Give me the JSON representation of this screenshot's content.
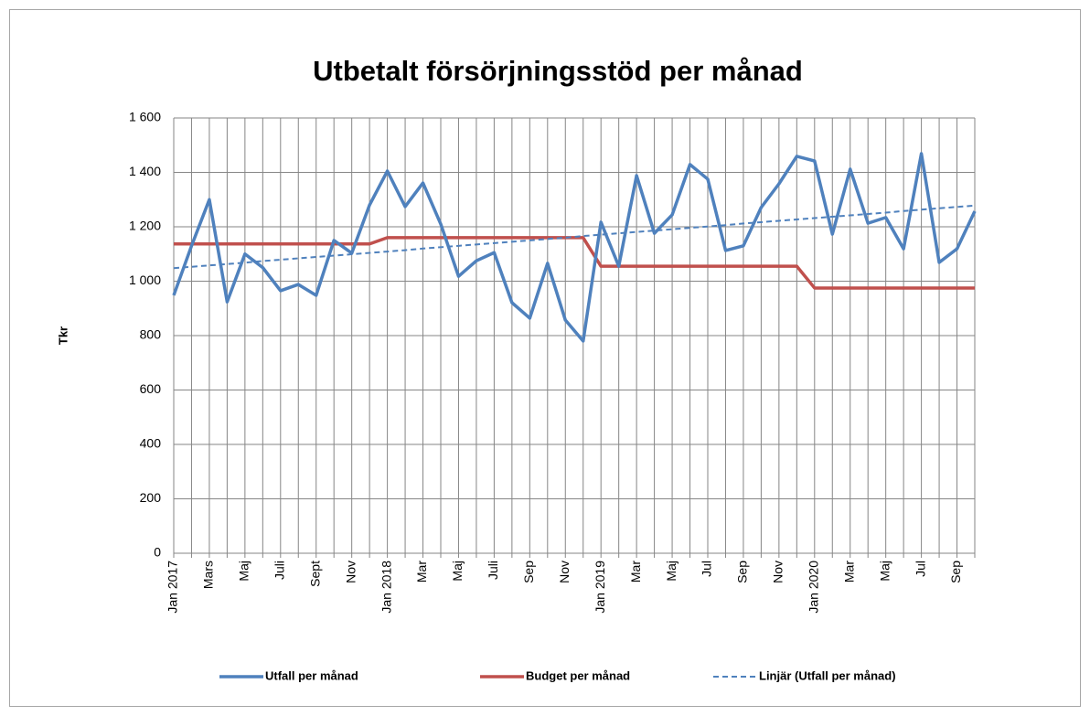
{
  "chart_data": {
    "type": "line",
    "title": "Utbetalt försörjningsstöd per månad",
    "y_label": "Tkr",
    "categories": [
      "Jan 2017",
      null,
      "Mars",
      null,
      "Maj",
      null,
      "Juli",
      null,
      "Sept",
      null,
      "Nov",
      null,
      "Jan 2018",
      null,
      "Mar",
      null,
      "Maj",
      null,
      "Juli",
      null,
      "Sep",
      null,
      "Nov",
      null,
      "Jan 2019",
      null,
      "Mar",
      null,
      "Maj",
      null,
      "Jul",
      null,
      "Sep",
      null,
      "Nov",
      null,
      "Jan 2020",
      null,
      "Mar",
      null,
      "Maj",
      null,
      "Jul",
      null,
      "Sep",
      null
    ],
    "series": [
      {
        "name": "Utfall per månad",
        "color": "#4f81bd",
        "line_style": "solid",
        "values": [
          948,
          1130,
          1300,
          924,
          1100,
          1050,
          965,
          988,
          948,
          1150,
          1103,
          1280,
          1405,
          1274,
          1361,
          1210,
          1018,
          1075,
          1105,
          921,
          864,
          1066,
          857,
          780,
          1217,
          1055,
          1388,
          1176,
          1244,
          1429,
          1375,
          1113,
          1130,
          1271,
          1358,
          1459,
          1442,
          1173,
          1412,
          1213,
          1234,
          1119,
          1469,
          1069,
          1119,
          1257
        ]
      },
      {
        "name": "Budget per månad",
        "color": "#c0504d",
        "line_style": "solid",
        "values": [
          1137,
          1137,
          1137,
          1137,
          1137,
          1137,
          1137,
          1137,
          1137,
          1137,
          1137,
          1137,
          1160,
          1160,
          1160,
          1160,
          1160,
          1160,
          1160,
          1160,
          1160,
          1160,
          1160,
          1160,
          1055,
          1055,
          1055,
          1055,
          1055,
          1055,
          1055,
          1055,
          1055,
          1055,
          1055,
          1055,
          975,
          975,
          975,
          975,
          975,
          975,
          975,
          975,
          975,
          975
        ]
      },
      {
        "name": "Linjär (Utfall per månad)",
        "color": "#4f81bd",
        "line_style": "dashed",
        "values": [
          1048,
          1053,
          1058,
          1063,
          1068,
          1074,
          1079,
          1084,
          1089,
          1094,
          1099,
          1104,
          1109,
          1114,
          1120,
          1125,
          1130,
          1135,
          1140,
          1145,
          1150,
          1155,
          1160,
          1166,
          1171,
          1176,
          1181,
          1186,
          1191,
          1196,
          1201,
          1206,
          1212,
          1217,
          1222,
          1227,
          1232,
          1237,
          1242,
          1247,
          1252,
          1258,
          1263,
          1268,
          1273,
          1278
        ]
      }
    ],
    "ylim": [
      0,
      1600
    ],
    "yticks": [
      0,
      200,
      400,
      600,
      800,
      {
        "value": 1000,
        "label": "1 000"
      },
      {
        "value": 1200,
        "label": "1 200"
      },
      {
        "value": 1400,
        "label": "1 400"
      },
      {
        "value": 1600,
        "label": "1 600"
      }
    ],
    "grid": true,
    "legend": "bottom"
  }
}
